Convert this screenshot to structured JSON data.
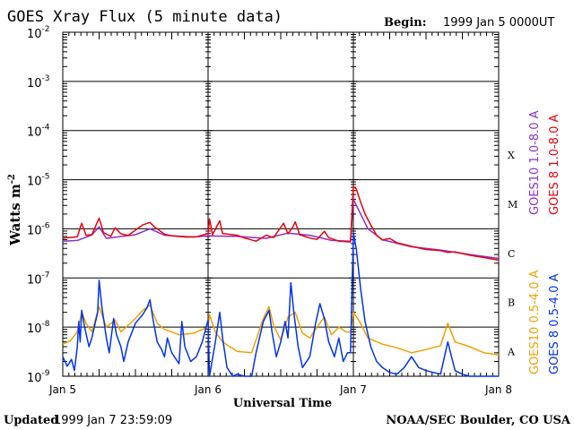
{
  "chart_data": {
    "type": "line",
    "title": "GOES Xray Flux (5 minute data)",
    "begin_label": "Begin:",
    "begin_value": "1999 Jan 5 0000UT",
    "ylabel": "Watts m",
    "ylabel_sup": "-2",
    "xlabel": "Universal Time",
    "y_scale": "log",
    "ylim": [
      1e-09,
      0.01
    ],
    "y_ticks": [
      {
        "exp": -2,
        "base": "10",
        "sup": "-2"
      },
      {
        "exp": -3,
        "base": "10",
        "sup": "-3"
      },
      {
        "exp": -4,
        "base": "10",
        "sup": "-4"
      },
      {
        "exp": -5,
        "base": "10",
        "sup": "-5"
      },
      {
        "exp": -6,
        "base": "10",
        "sup": "-6"
      },
      {
        "exp": -7,
        "base": "10",
        "sup": "-7"
      },
      {
        "exp": -8,
        "base": "10",
        "sup": "-8"
      },
      {
        "exp": -9,
        "base": "10",
        "sup": "-9"
      }
    ],
    "x_range": [
      "1999 Jan 5 00:00",
      "1999 Jan 8 00:00"
    ],
    "x_ticks": [
      {
        "day": 5,
        "label": "Jan 5"
      },
      {
        "day": 6,
        "label": "Jan 6"
      },
      {
        "day": 7,
        "label": "Jan 7"
      },
      {
        "day": 8,
        "label": "Jan 8"
      }
    ],
    "flare_classes": [
      {
        "label": "X",
        "exp": -4
      },
      {
        "label": "M",
        "exp": -5
      },
      {
        "label": "C",
        "exp": -6
      },
      {
        "label": "B",
        "exp": -7
      },
      {
        "label": "A",
        "exp": -8
      }
    ],
    "grid": true,
    "legend_position": "right, vertical",
    "series": [
      {
        "name": "GOES10 1.0-8.0 A",
        "color": "#8b2fc9",
        "points": [
          [
            5.0,
            5.6e-07
          ],
          [
            5.1,
            5.8e-07
          ],
          [
            5.2,
            7.5e-07
          ],
          [
            5.25,
            1.1e-06
          ],
          [
            5.3,
            6.4e-07
          ],
          [
            5.5,
            7.6e-07
          ],
          [
            5.6,
            1e-06
          ],
          [
            5.7,
            7.4e-07
          ],
          [
            5.9,
            6.8e-07
          ],
          [
            6.0,
            7.2e-07
          ],
          [
            6.2,
            7e-07
          ],
          [
            6.4,
            6.4e-07
          ],
          [
            6.55,
            8.2e-07
          ],
          [
            6.7,
            7.4e-07
          ],
          [
            6.85,
            5.8e-07
          ],
          [
            6.98,
            5.6e-07
          ],
          [
            7.0,
            4e-06
          ],
          [
            7.05,
            2e-06
          ],
          [
            7.1,
            1e-06
          ],
          [
            7.2,
            6e-07
          ],
          [
            7.4,
            4.3e-07
          ],
          [
            7.6,
            3.7e-07
          ],
          [
            7.8,
            3e-07
          ],
          [
            8.0,
            2.5e-07
          ]
        ]
      },
      {
        "name": "GOES 8 1.0-8.0 A",
        "color": "#e8000b",
        "points": [
          [
            5.0,
            6.5e-07
          ],
          [
            5.05,
            6.6e-07
          ],
          [
            5.1,
            6.9e-07
          ],
          [
            5.13,
            1.3e-06
          ],
          [
            5.16,
            7.4e-07
          ],
          [
            5.2,
            7.6e-07
          ],
          [
            5.25,
            1.65e-06
          ],
          [
            5.28,
            8.4e-07
          ],
          [
            5.33,
            7e-07
          ],
          [
            5.36,
            1.05e-06
          ],
          [
            5.4,
            7.9e-07
          ],
          [
            5.45,
            7.3e-07
          ],
          [
            5.5,
            9.4e-07
          ],
          [
            5.55,
            1.2e-06
          ],
          [
            5.6,
            1.35e-06
          ],
          [
            5.63,
            1.1e-06
          ],
          [
            5.7,
            7.8e-07
          ],
          [
            5.75,
            7.2e-07
          ],
          [
            5.85,
            6.8e-07
          ],
          [
            5.92,
            6.9e-07
          ],
          [
            6.0,
            8e-07
          ],
          [
            6.01,
            1.6e-06
          ],
          [
            6.03,
            7.6e-07
          ],
          [
            6.08,
            1.45e-06
          ],
          [
            6.1,
            8e-07
          ],
          [
            6.2,
            7.4e-07
          ],
          [
            6.25,
            6.5e-07
          ],
          [
            6.33,
            5.6e-07
          ],
          [
            6.4,
            7.4e-07
          ],
          [
            6.45,
            6.6e-07
          ],
          [
            6.52,
            1.3e-06
          ],
          [
            6.55,
            7.9e-07
          ],
          [
            6.58,
            1.05e-06
          ],
          [
            6.6,
            1.38e-06
          ],
          [
            6.63,
            7.6e-07
          ],
          [
            6.7,
            6.5e-07
          ],
          [
            6.75,
            6.1e-07
          ],
          [
            6.8,
            8.9e-07
          ],
          [
            6.83,
            6.6e-07
          ],
          [
            6.9,
            5.6e-07
          ],
          [
            6.98,
            5.4e-07
          ],
          [
            7.0,
            7.3e-06
          ],
          [
            7.02,
            6.5e-06
          ],
          [
            7.05,
            3.5e-06
          ],
          [
            7.08,
            2e-06
          ],
          [
            7.12,
            1.2e-06
          ],
          [
            7.16,
            7.4e-07
          ],
          [
            7.2,
            5.9e-07
          ],
          [
            7.25,
            6.4e-07
          ],
          [
            7.3,
            5.2e-07
          ],
          [
            7.4,
            4.4e-07
          ],
          [
            7.5,
            3.8e-07
          ],
          [
            7.6,
            3.6e-07
          ],
          [
            7.65,
            3.3e-07
          ],
          [
            7.7,
            3.4e-07
          ],
          [
            7.8,
            2.9e-07
          ],
          [
            7.9,
            2.6e-07
          ],
          [
            8.0,
            2.3e-07
          ]
        ]
      },
      {
        "name": "GOES10 0.5-4.0 A",
        "color": "#f0a000",
        "points": [
          [
            5.0,
            4.5e-09
          ],
          [
            5.05,
            5.2e-09
          ],
          [
            5.1,
            8e-09
          ],
          [
            5.13,
            2e-08
          ],
          [
            5.16,
            1.2e-08
          ],
          [
            5.2,
            8e-09
          ],
          [
            5.25,
            2.6e-08
          ],
          [
            5.3,
            1e-08
          ],
          [
            5.36,
            1.4e-08
          ],
          [
            5.4,
            8e-09
          ],
          [
            5.5,
            1.5e-08
          ],
          [
            5.55,
            2.2e-08
          ],
          [
            5.6,
            2.8e-08
          ],
          [
            5.65,
            1.2e-08
          ],
          [
            5.7,
            9e-09
          ],
          [
            5.8,
            7e-09
          ],
          [
            5.9,
            7.5e-09
          ],
          [
            6.0,
            1e-08
          ],
          [
            6.01,
            1.8e-08
          ],
          [
            6.05,
            8e-09
          ],
          [
            6.1,
            5e-09
          ],
          [
            6.2,
            3.2e-09
          ],
          [
            6.3,
            3e-09
          ],
          [
            6.38,
            1.5e-08
          ],
          [
            6.42,
            2.6e-08
          ],
          [
            6.45,
            1.1e-08
          ],
          [
            6.5,
            5.5e-09
          ],
          [
            6.55,
            1.6e-08
          ],
          [
            6.6,
            2e-08
          ],
          [
            6.65,
            7.5e-09
          ],
          [
            6.7,
            6e-09
          ],
          [
            6.75,
            1e-08
          ],
          [
            6.8,
            1.6e-08
          ],
          [
            6.85,
            7e-09
          ],
          [
            6.9,
            1e-08
          ],
          [
            6.95,
            8e-09
          ],
          [
            6.98,
            8e-09
          ],
          [
            7.0,
            2e-08
          ],
          [
            7.05,
            1.2e-08
          ],
          [
            7.1,
            6e-09
          ],
          [
            7.2,
            4.5e-09
          ],
          [
            7.3,
            3.8e-09
          ],
          [
            7.4,
            3e-09
          ],
          [
            7.5,
            3.5e-09
          ],
          [
            7.6,
            4.2e-09
          ],
          [
            7.65,
            1.2e-08
          ],
          [
            7.7,
            5e-09
          ],
          [
            7.8,
            4e-09
          ],
          [
            7.9,
            3e-09
          ],
          [
            8.0,
            2.7e-09
          ]
        ]
      },
      {
        "name": "GOES 8 0.5-4.0 A",
        "color": "#0033ee",
        "points": [
          [
            5.0,
            2.5e-09
          ],
          [
            5.03,
            1.6e-09
          ],
          [
            5.06,
            2.2e-09
          ],
          [
            5.08,
            1.3e-09
          ],
          [
            5.1,
            4e-09
          ],
          [
            5.11,
            1.3e-08
          ],
          [
            5.12,
            5e-09
          ],
          [
            5.13,
            2.2e-08
          ],
          [
            5.15,
            1e-08
          ],
          [
            5.18,
            4e-09
          ],
          [
            5.2,
            6e-09
          ],
          [
            5.24,
            2e-08
          ],
          [
            5.25,
            9e-08
          ],
          [
            5.27,
            2.5e-08
          ],
          [
            5.3,
            6e-09
          ],
          [
            5.32,
            3e-09
          ],
          [
            5.35,
            1.5e-08
          ],
          [
            5.37,
            7e-09
          ],
          [
            5.4,
            4e-09
          ],
          [
            5.42,
            2e-09
          ],
          [
            5.45,
            5e-09
          ],
          [
            5.5,
            1.2e-08
          ],
          [
            5.55,
            1.8e-08
          ],
          [
            5.58,
            2.5e-08
          ],
          [
            5.6,
            3.6e-08
          ],
          [
            5.62,
            1.5e-08
          ],
          [
            5.65,
            5e-09
          ],
          [
            5.68,
            3.5e-09
          ],
          [
            5.7,
            2.5e-09
          ],
          [
            5.72,
            6e-09
          ],
          [
            5.75,
            3e-09
          ],
          [
            5.8,
            1.8e-09
          ],
          [
            5.82,
            1.3e-08
          ],
          [
            5.84,
            4e-09
          ],
          [
            5.88,
            2e-09
          ],
          [
            5.92,
            2.5e-09
          ],
          [
            5.96,
            5e-09
          ],
          [
            6.0,
            1.4e-08
          ],
          [
            6.01,
            1e-09
          ],
          [
            6.05,
            5e-09
          ],
          [
            6.08,
            2e-08
          ],
          [
            6.1,
            6e-09
          ],
          [
            6.13,
            1.5e-09
          ],
          [
            6.17,
            1e-09
          ],
          [
            6.2,
            1.1e-09
          ],
          [
            6.25,
            1e-09
          ],
          [
            6.3,
            1e-09
          ],
          [
            6.33,
            3e-09
          ],
          [
            6.38,
            1.3e-08
          ],
          [
            6.42,
            2.2e-08
          ],
          [
            6.44,
            8e-09
          ],
          [
            6.47,
            2.5e-09
          ],
          [
            6.5,
            5e-09
          ],
          [
            6.53,
            1.3e-08
          ],
          [
            6.55,
            6e-09
          ],
          [
            6.57,
            8e-08
          ],
          [
            6.59,
            2e-08
          ],
          [
            6.62,
            4e-09
          ],
          [
            6.65,
            1.5e-09
          ],
          [
            6.7,
            2.5e-09
          ],
          [
            6.74,
            1.2e-08
          ],
          [
            6.77,
            3e-08
          ],
          [
            6.8,
            1.5e-08
          ],
          [
            6.83,
            5e-09
          ],
          [
            6.87,
            2.5e-09
          ],
          [
            6.9,
            6e-09
          ],
          [
            6.93,
            2e-09
          ],
          [
            6.96,
            3e-09
          ],
          [
            6.98,
            3e-09
          ],
          [
            7.0,
            8e-07
          ],
          [
            7.02,
            4e-07
          ],
          [
            7.05,
            6e-08
          ],
          [
            7.08,
            1.3e-08
          ],
          [
            7.12,
            4e-09
          ],
          [
            7.16,
            2e-09
          ],
          [
            7.2,
            1.5e-09
          ],
          [
            7.25,
            1.2e-09
          ],
          [
            7.3,
            1.1e-09
          ],
          [
            7.35,
            1.5e-09
          ],
          [
            7.4,
            2.5e-09
          ],
          [
            7.45,
            1.5e-09
          ],
          [
            7.5,
            1.3e-09
          ],
          [
            7.6,
            1.1e-09
          ],
          [
            7.65,
            5e-09
          ],
          [
            7.7,
            1.3e-09
          ],
          [
            7.75,
            1.1e-09
          ],
          [
            7.8,
            1e-09
          ],
          [
            7.9,
            1e-09
          ],
          [
            8.0,
            1e-09
          ]
        ]
      }
    ]
  },
  "footer": {
    "updated_label": "Updated",
    "updated_value": "1999 Jan  7 23:59:09",
    "credit": "NOAA/SEC Boulder, CO USA"
  }
}
